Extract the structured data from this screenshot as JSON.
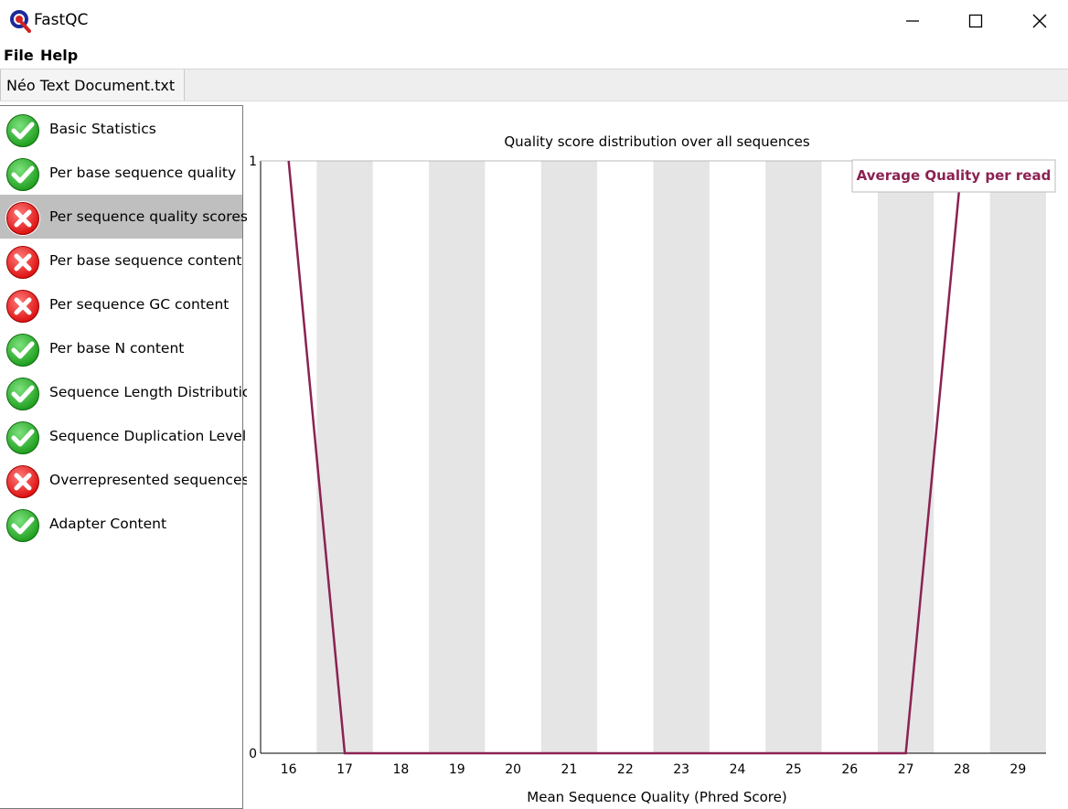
{
  "window": {
    "title": "FastQC",
    "minimize_icon": "minimize-icon",
    "maximize_icon": "maximize-icon",
    "close_icon": "close-icon"
  },
  "menu": {
    "file": "File",
    "help": "Help"
  },
  "tab": {
    "label": "Néo Text Document.txt"
  },
  "modules": [
    {
      "label": "Basic Statistics",
      "status": "pass",
      "icon": "pass-check-icon"
    },
    {
      "label": "Per base sequence quality",
      "status": "pass",
      "icon": "pass-check-icon"
    },
    {
      "label": "Per sequence quality scores",
      "status": "fail",
      "icon": "fail-cross-icon",
      "selected": true
    },
    {
      "label": "Per base sequence content",
      "status": "fail",
      "icon": "fail-cross-icon"
    },
    {
      "label": "Per sequence GC content",
      "status": "fail",
      "icon": "fail-cross-icon"
    },
    {
      "label": "Per base N content",
      "status": "pass",
      "icon": "pass-check-icon"
    },
    {
      "label": "Sequence Length Distribution",
      "status": "pass",
      "icon": "pass-check-icon"
    },
    {
      "label": "Sequence Duplication Levels",
      "status": "pass",
      "icon": "pass-check-icon"
    },
    {
      "label": "Overrepresented sequences",
      "status": "fail",
      "icon": "fail-cross-icon"
    },
    {
      "label": "Adapter Content",
      "status": "pass",
      "icon": "pass-check-icon"
    }
  ],
  "colors": {
    "line": "#8b2252",
    "stripe": "#e5e5e5",
    "pass": "#1f9e1f",
    "fail": "#dd1111",
    "selected": "#bfbfbf"
  },
  "chart_data": {
    "type": "line",
    "title": "Quality score distribution over all sequences",
    "xlabel": "Mean Sequence Quality (Phred Score)",
    "ylabel": "",
    "x": [
      16,
      17,
      18,
      19,
      20,
      21,
      22,
      23,
      24,
      25,
      26,
      27,
      28,
      29
    ],
    "series": [
      {
        "name": "Average Quality per read",
        "values": [
          1,
          0,
          0,
          0,
          0,
          0,
          0,
          0,
          0,
          0,
          0,
          0,
          1,
          1
        ]
      }
    ],
    "ylim": [
      0,
      1
    ],
    "y_ticks": [
      "0",
      "1"
    ],
    "alternating_stripes": true,
    "legend_position": "top-right"
  }
}
